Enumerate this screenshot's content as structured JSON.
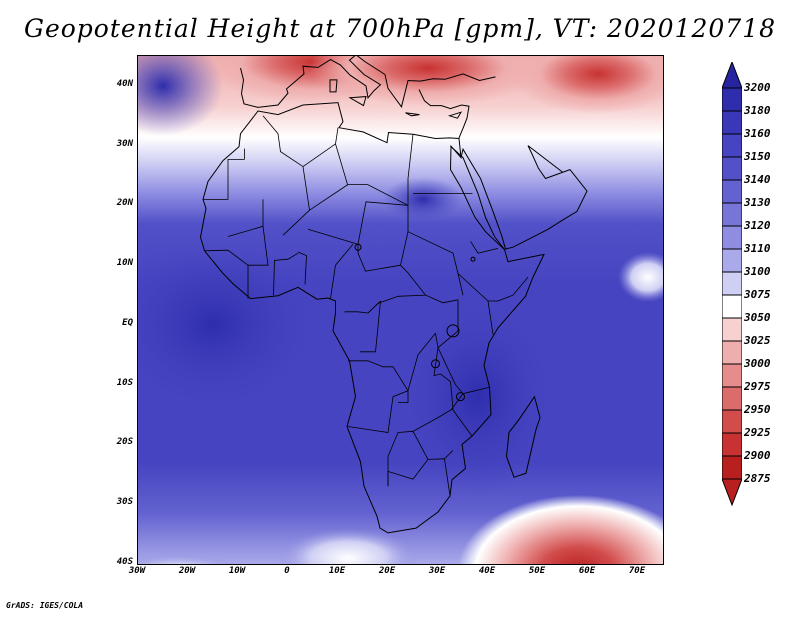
{
  "title": "Geopotential Height at 700hPa [gpm], VT: 2020120718",
  "credit": "GrADS: IGES/COLA",
  "map": {
    "lon_range": [
      -30,
      75
    ],
    "lat_range": [
      -40,
      45
    ],
    "lat_labels": [
      {
        "lat": 40,
        "text": "40N"
      },
      {
        "lat": 30,
        "text": "30N"
      },
      {
        "lat": 20,
        "text": "20N"
      },
      {
        "lat": 10,
        "text": "10N"
      },
      {
        "lat": 0,
        "text": "EQ"
      },
      {
        "lat": -10,
        "text": "10S"
      },
      {
        "lat": -20,
        "text": "20S"
      },
      {
        "lat": -30,
        "text": "30S"
      },
      {
        "lat": -40,
        "text": "40S"
      }
    ],
    "lon_labels": [
      {
        "lon": -30,
        "text": "30W"
      },
      {
        "lon": -20,
        "text": "20W"
      },
      {
        "lon": -10,
        "text": "10W"
      },
      {
        "lon": 0,
        "text": "0"
      },
      {
        "lon": 10,
        "text": "10E"
      },
      {
        "lon": 20,
        "text": "20E"
      },
      {
        "lon": 30,
        "text": "30E"
      },
      {
        "lon": 40,
        "text": "40E"
      },
      {
        "lon": 50,
        "text": "50E"
      },
      {
        "lon": 60,
        "text": "60E"
      },
      {
        "lon": 70,
        "text": "70E"
      }
    ],
    "field_features": [
      {
        "lon": 5,
        "lat": 44,
        "value": 2890
      },
      {
        "lon": 25,
        "lat": 42,
        "value": 2960
      },
      {
        "lon": 55,
        "lat": 40,
        "value": 3010
      },
      {
        "lon": 15,
        "lat": 33,
        "value": 3050
      },
      {
        "lon": 58,
        "lat": -40,
        "value": 2880
      },
      {
        "lon": 12,
        "lat": -38,
        "value": 3090
      },
      {
        "lon": -25,
        "lat": -40,
        "value": 3080
      },
      {
        "lon": 27,
        "lat": 23,
        "value": 3180
      },
      {
        "lon": -20,
        "lat": 5,
        "value": 3150
      },
      {
        "lon": 40,
        "lat": -10,
        "value": 3150
      }
    ]
  },
  "colorbar": {
    "levels": [
      "3200",
      "3180",
      "3160",
      "3150",
      "3140",
      "3130",
      "3120",
      "3110",
      "3100",
      "3075",
      "3050",
      "3025",
      "3000",
      "2975",
      "2950",
      "2925",
      "2900",
      "2875"
    ],
    "colors": [
      "#26249e",
      "#2e2dac",
      "#3a38b8",
      "#4644c0",
      "#5251c8",
      "#6362d0",
      "#7776d8",
      "#8e8de2",
      "#aaa9ea",
      "#cfcff4",
      "#ffffff",
      "#f7d0d0",
      "#efaeae",
      "#e68c8c",
      "#dc6c6c",
      "#d24c4c",
      "#c83232",
      "#b81f1f"
    ]
  }
}
